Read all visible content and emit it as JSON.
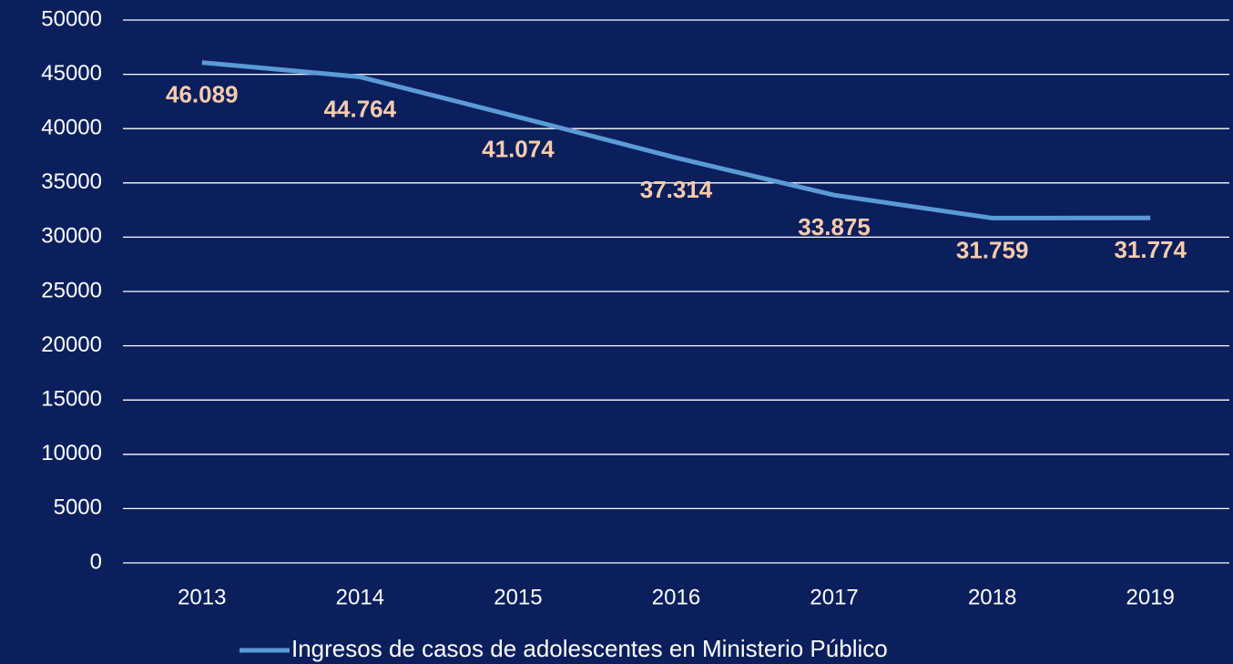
{
  "chart_data": {
    "type": "line",
    "categories": [
      "2013",
      "2014",
      "2015",
      "2016",
      "2017",
      "2018",
      "2019"
    ],
    "series": [
      {
        "name": "Ingresos de casos de adolescentes en Ministerio Público",
        "color": "#5b9bd5",
        "values": [
          46089,
          44764,
          41074,
          37314,
          33875,
          31759,
          31774
        ],
        "value_labels": [
          "46.089",
          "44.764",
          "41.074",
          "37.314",
          "33.875",
          "31.759",
          "31.774"
        ]
      }
    ],
    "ylim": [
      0,
      50000
    ],
    "yticks": [
      0,
      5000,
      10000,
      15000,
      20000,
      25000,
      30000,
      35000,
      40000,
      45000,
      50000
    ],
    "grid": true,
    "legend": "bottom"
  }
}
